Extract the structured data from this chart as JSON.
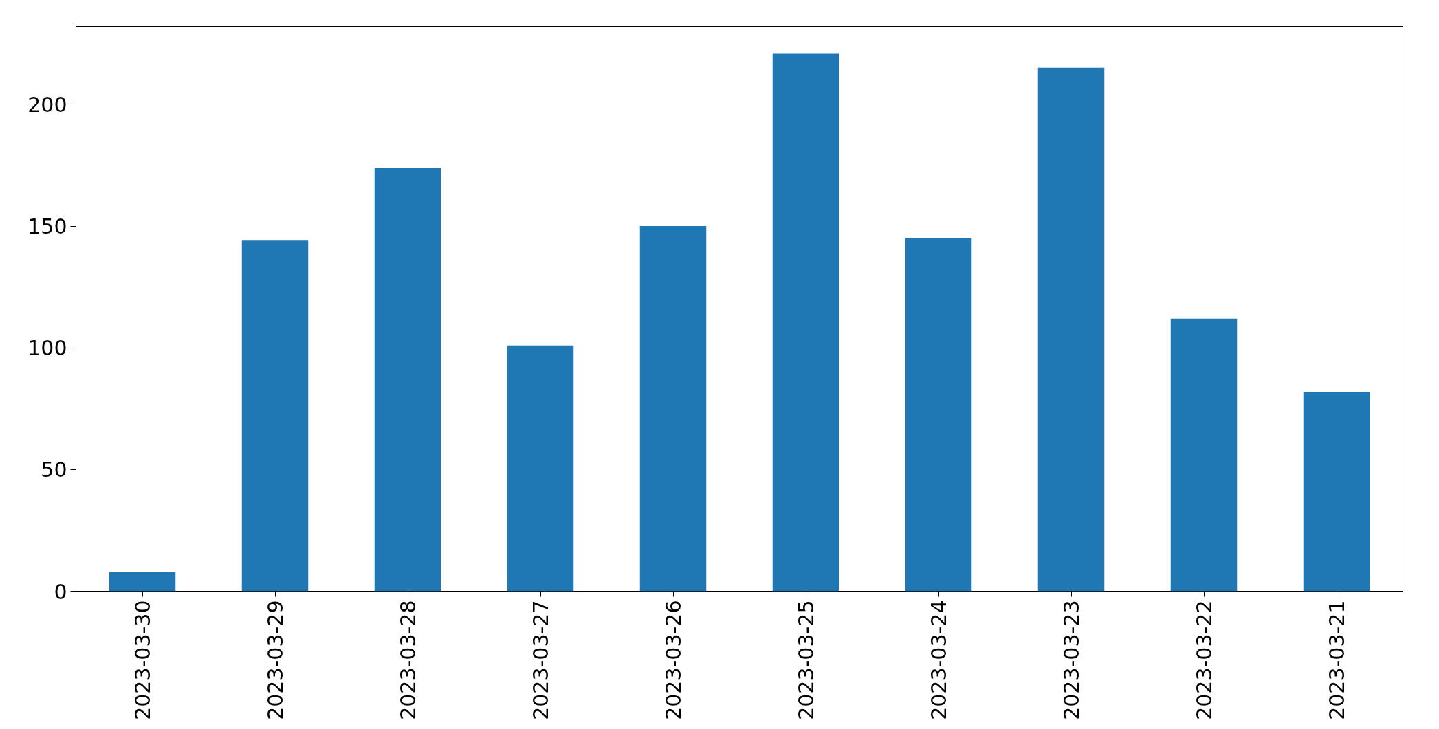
{
  "chart_data": {
    "type": "bar",
    "categories": [
      "2023-03-30",
      "2023-03-29",
      "2023-03-28",
      "2023-03-27",
      "2023-03-26",
      "2023-03-25",
      "2023-03-24",
      "2023-03-23",
      "2023-03-22",
      "2023-03-21"
    ],
    "values": [
      8,
      144,
      174,
      101,
      150,
      221,
      145,
      215,
      112,
      82
    ],
    "color": "#1f77b4",
    "ylim": [
      0,
      232
    ],
    "yticks": [
      0,
      50,
      100,
      150,
      200
    ],
    "grid": false
  }
}
